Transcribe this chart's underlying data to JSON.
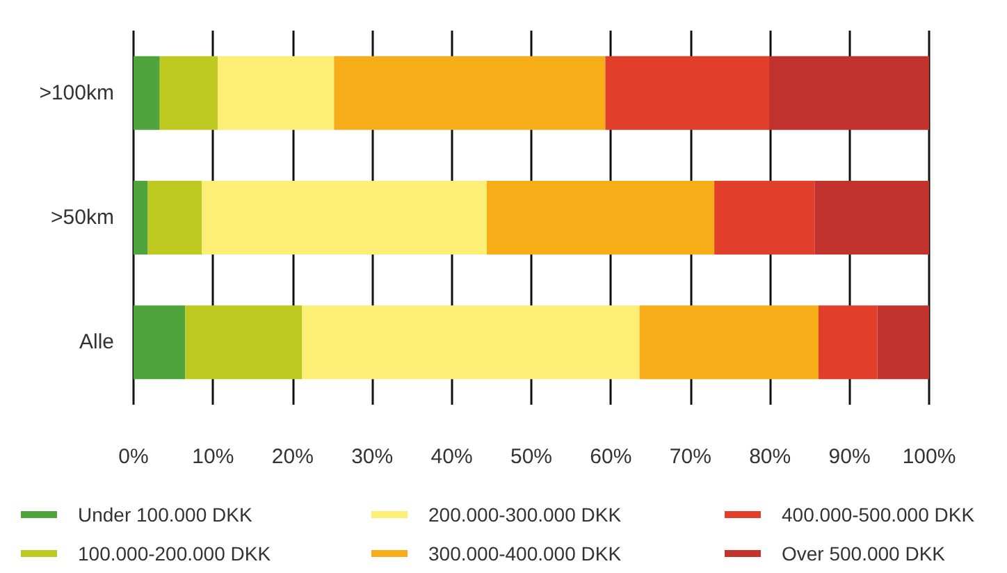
{
  "chart_data": {
    "type": "bar",
    "orientation": "horizontal",
    "stacked": true,
    "categories": [
      ">100km",
      ">50km",
      "Alle"
    ],
    "series": [
      {
        "name": "Under 100.000 DKK",
        "color": "#4fa53b",
        "values": [
          3.3,
          1.8,
          6.5
        ]
      },
      {
        "name": "100.000-200.000 DKK",
        "color": "#bfca20",
        "values": [
          7.3,
          6.8,
          14.7
        ]
      },
      {
        "name": "200.000-300.000 DKK",
        "color": "#fdee75",
        "values": [
          14.6,
          35.8,
          42.4
        ]
      },
      {
        "name": "300.000-400.000 DKK",
        "color": "#f7ad18",
        "values": [
          34.1,
          28.6,
          22.5
        ]
      },
      {
        "name": "400.000-500.000 DKK",
        "color": "#e23f2a",
        "values": [
          20.6,
          12.6,
          7.4
        ]
      },
      {
        "name": "Over 500.000 DKK",
        "color": "#c2332d",
        "values": [
          20.1,
          14.4,
          6.5
        ]
      }
    ],
    "xlim": [
      0,
      100
    ],
    "xticks": [
      {
        "value": 0,
        "label": "0%"
      },
      {
        "value": 10,
        "label": "10%"
      },
      {
        "value": 20,
        "label": "20%"
      },
      {
        "value": 30,
        "label": "30%"
      },
      {
        "value": 40,
        "label": "40%"
      },
      {
        "value": 50,
        "label": "50%"
      },
      {
        "value": 60,
        "label": "60%"
      },
      {
        "value": 70,
        "label": "70%"
      },
      {
        "value": 80,
        "label": "80%"
      },
      {
        "value": 90,
        "label": "90%"
      },
      {
        "value": 100,
        "label": "100%"
      }
    ],
    "grid": "x",
    "legend": "bottom"
  }
}
